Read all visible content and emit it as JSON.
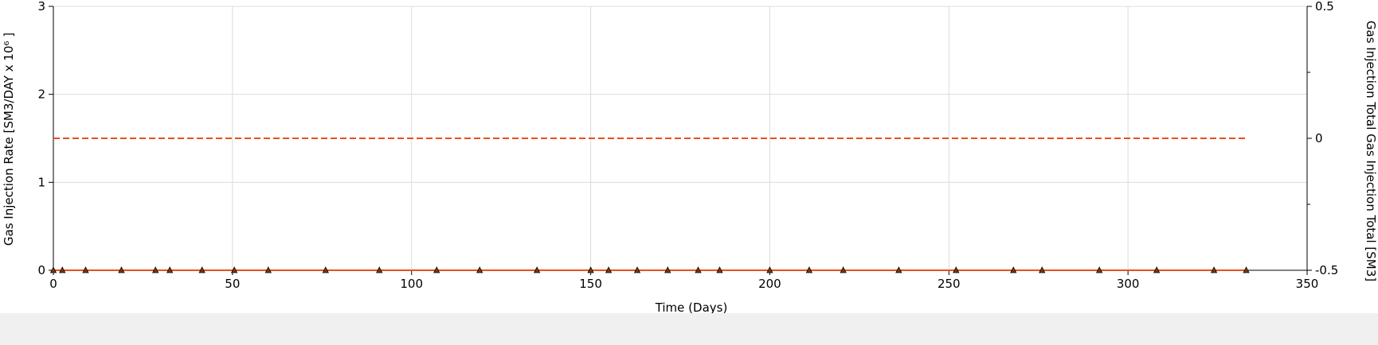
{
  "chart_data": {
    "type": "line",
    "xlabel": "Time (Days)",
    "ylabel_left": "Gas Injection Rate [SM3/DAY x 10⁶ ]",
    "ylabel_right": "Gas Injection Total Gas Injection Total [SM3]",
    "xlim": [
      0,
      350
    ],
    "ylim_left": [
      0,
      3
    ],
    "ylim_right": [
      -0.5,
      0.5
    ],
    "x_ticks": [
      0,
      50,
      100,
      150,
      200,
      250,
      300,
      350
    ],
    "y_ticks_left": [
      0,
      1,
      2,
      3
    ],
    "y_ticks_right": [
      -0.5,
      0,
      0.5
    ],
    "y_tick_labels_right": [
      "-0.5",
      "0",
      "0.5"
    ],
    "grid": true,
    "series": [
      {
        "axis": "left",
        "style": "solid",
        "marker": "triangle",
        "color": "#e8501a",
        "x": [
          0,
          2.5,
          9,
          19,
          28.5,
          32.5,
          41.5,
          50.5,
          60,
          76,
          91,
          107,
          119,
          135,
          150,
          155,
          163,
          171.5,
          180,
          186,
          200,
          211,
          220.5,
          236,
          252,
          268,
          276,
          292,
          308,
          324,
          333
        ],
        "y": [
          0,
          0,
          0,
          0,
          0,
          0,
          0,
          0,
          0,
          0,
          0,
          0,
          0,
          0,
          0,
          0,
          0,
          0,
          0,
          0,
          0,
          0,
          0,
          0,
          0,
          0,
          0,
          0,
          0,
          0,
          0
        ]
      },
      {
        "axis": "right",
        "style": "dashed",
        "color": "#e8501a",
        "x": [
          0,
          333
        ],
        "y": [
          0,
          0
        ]
      }
    ],
    "colors": {
      "series": "#e8501a",
      "marker_fill": "#7a3a10",
      "grid": "#dcdcdc",
      "axis": "#000000"
    }
  }
}
